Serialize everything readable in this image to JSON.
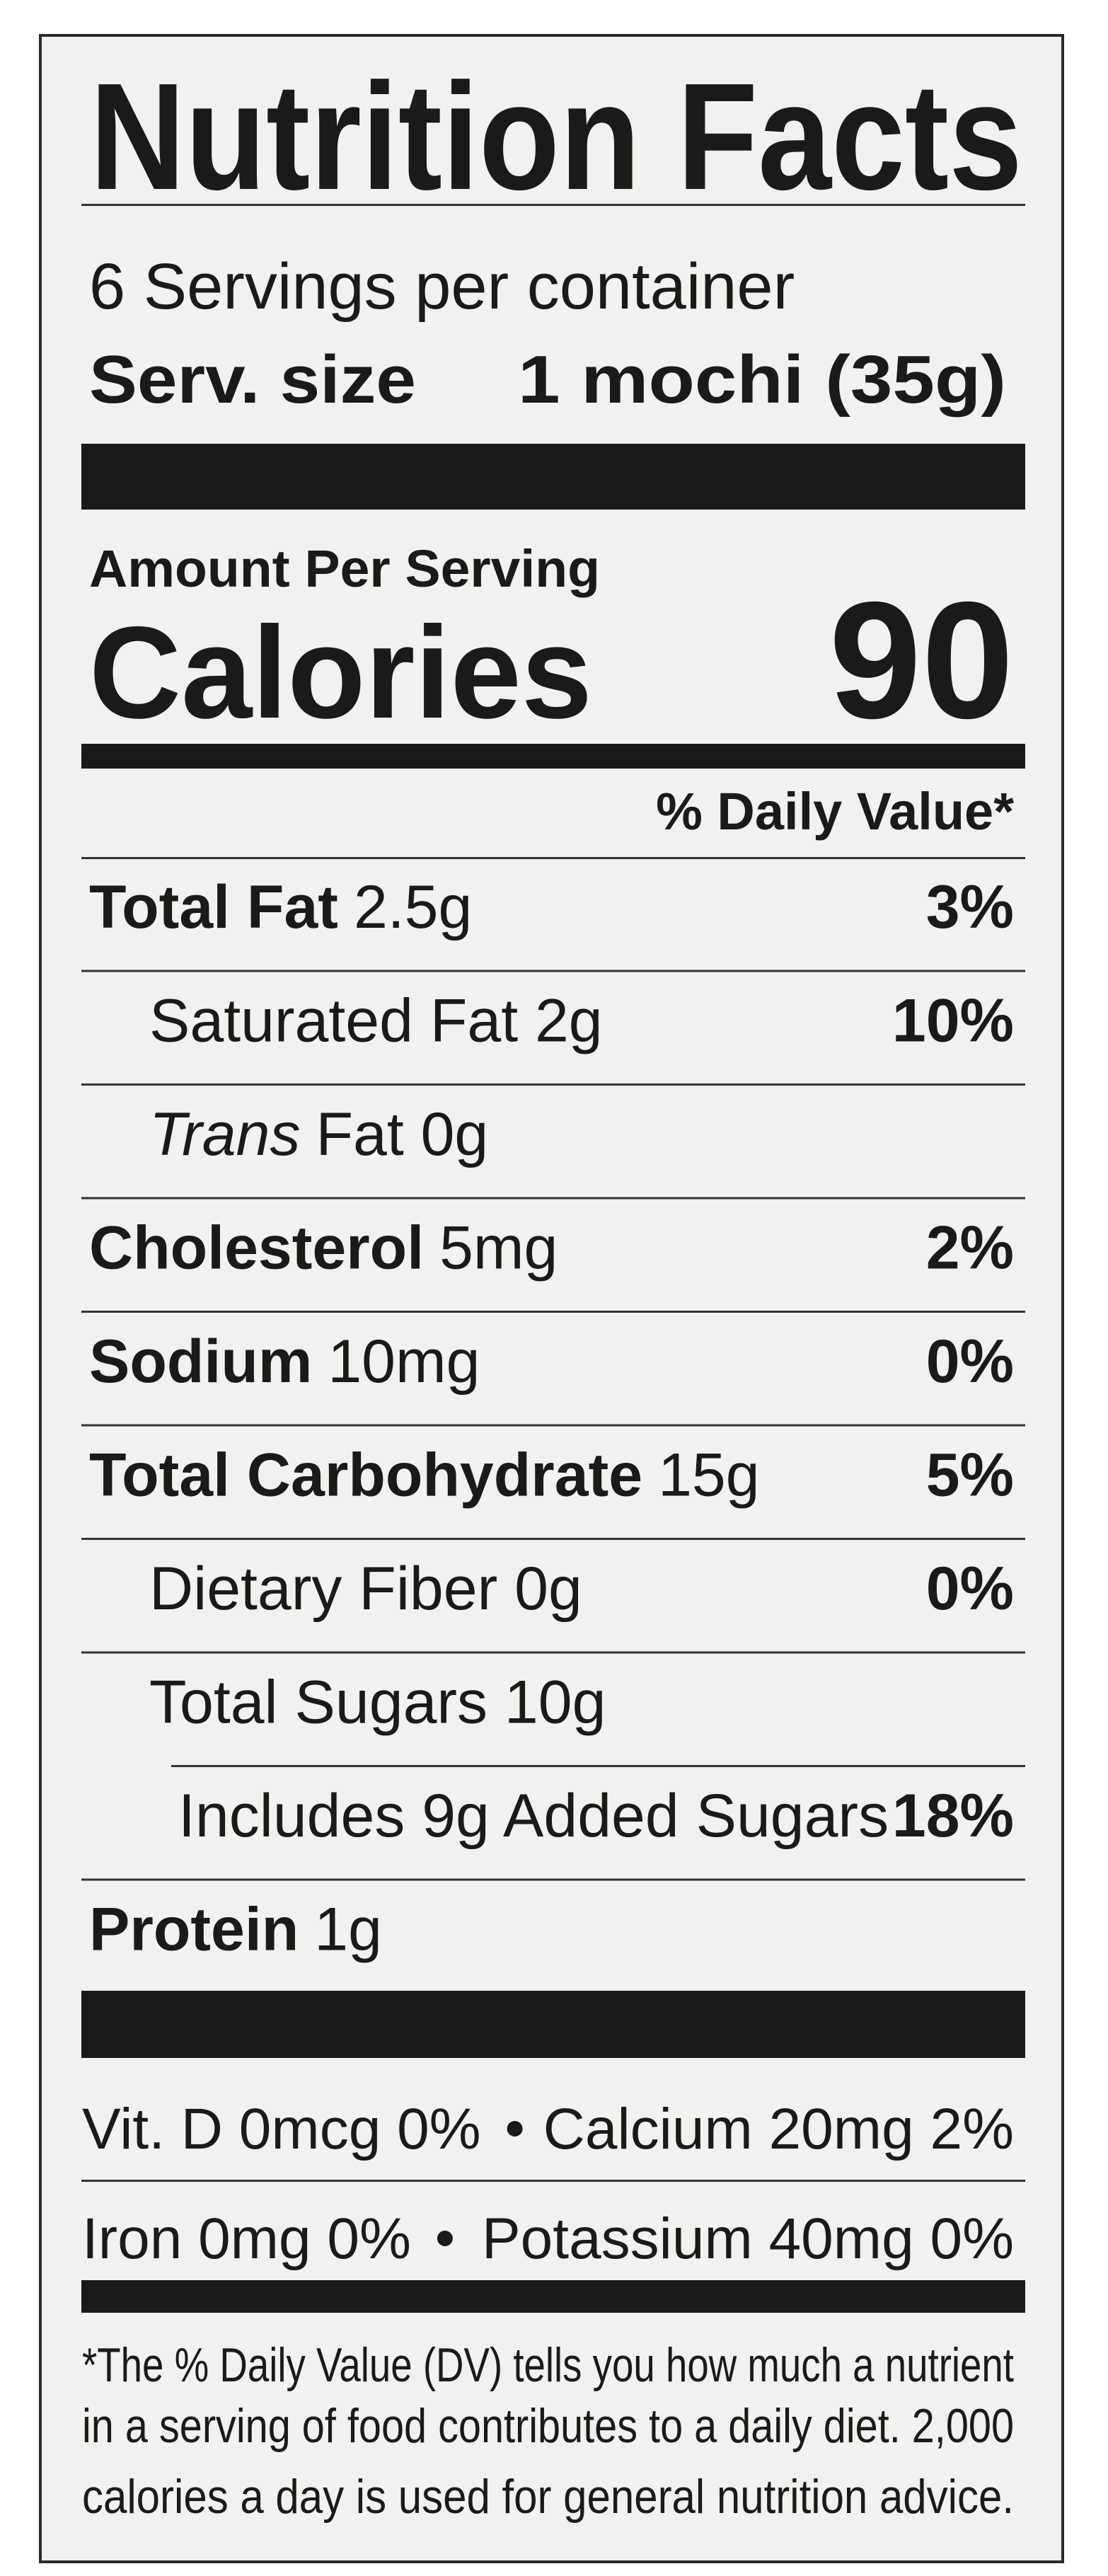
{
  "title": "Nutrition Facts",
  "servings": "6 Servings per container",
  "serving_size": {
    "label": "Serv. size",
    "value": "1 mochi (35g)"
  },
  "amount_per_serving": "Amount Per Serving",
  "calories": {
    "label": "Calories",
    "value": "90"
  },
  "daily_value_header": "% Daily Value*",
  "nutrients": [
    {
      "name": "Total Fat",
      "amount": "2.5g",
      "dv": "3%",
      "sub": [
        {
          "name": "Saturated Fat 2g",
          "dv": "10%"
        },
        {
          "name": "Trans",
          "italic": true,
          "amount": "Fat 0g"
        }
      ]
    },
    {
      "name": "Cholesterol",
      "amount": "5mg",
      "dv": "2%"
    },
    {
      "name": "Sodium",
      "amount": "10mg",
      "dv": "0%"
    },
    {
      "name": "Total Carbohydrate",
      "amount": "15g",
      "dv": "5%",
      "sub": [
        {
          "name": "Dietary Fiber 0g",
          "dv": "0%"
        },
        {
          "name": "Total Sugars 10g",
          "sub": [
            {
              "name": "Includes 9g Added Sugars",
              "dv": "18%"
            }
          ]
        }
      ]
    },
    {
      "name": "Protein",
      "amount": "1g"
    }
  ],
  "vitamins": [
    [
      "Vit. D 0mcg 0%",
      "Calcium 20mg 2%"
    ],
    [
      "Iron 0mg 0%",
      "Potassium 40mg 0%"
    ]
  ],
  "footnote": [
    "*The % Daily Value (DV) tells you how much a nutrient",
    "in a serving of food contributes to a daily diet. 2,000",
    "calories a day is used for general nutrition advice."
  ]
}
